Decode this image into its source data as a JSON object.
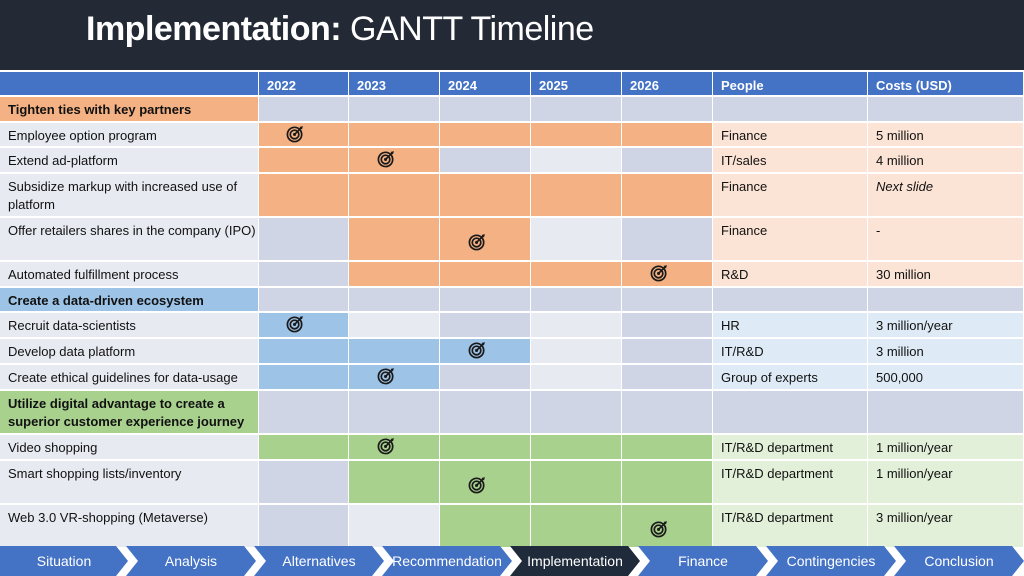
{
  "title": {
    "bold": "Implementation:",
    "rest": "GANTT Timeline"
  },
  "colors": {
    "title_bg": "#232a35",
    "header_bg": "#4472c4",
    "orange": "#f4b183",
    "orange_light": "#fbe4d5",
    "blue": "#9dc3e6",
    "blue_light": "#deebf7",
    "green": "#a9d18e",
    "green_light": "#e2f0d9",
    "gray": "#d0d5e6",
    "gray_light": "#e8eaf2",
    "nav": "#4472c4",
    "nav_active": "#1f2a3a"
  },
  "header": [
    "",
    "2022",
    "2023",
    "2024",
    "2025",
    "2026",
    "People",
    "Costs (USD)"
  ],
  "rows": [
    {
      "task": "Tighten ties with key partners",
      "kind": "section",
      "color": "orange",
      "fills": [
        0,
        0,
        0,
        0,
        0
      ],
      "target": -1,
      "people": "",
      "costs": ""
    },
    {
      "task": "Employee option program",
      "kind": "task",
      "color": "orange",
      "fills": [
        1,
        1,
        1,
        1,
        1
      ],
      "target": 0,
      "people": "Finance",
      "costs": "5 million"
    },
    {
      "task": "Extend ad-platform",
      "kind": "task",
      "color": "orange",
      "fills": [
        1,
        1,
        0,
        0,
        0
      ],
      "target": 1,
      "people": "IT/sales",
      "costs": "4 million"
    },
    {
      "task": "Subsidize markup with increased use of platform",
      "kind": "task",
      "color": "orange",
      "fills": [
        1,
        1,
        1,
        1,
        1
      ],
      "target": -1,
      "people": "Finance",
      "costs": "Next slide",
      "costs_italic": true
    },
    {
      "task": "Offer retailers shares in the company (IPO)",
      "kind": "task",
      "color": "orange",
      "fills": [
        0,
        1,
        1,
        0,
        0
      ],
      "target": 2,
      "people": "Finance",
      "costs": "-"
    },
    {
      "task": "Automated fulfillment process",
      "kind": "task",
      "color": "orange",
      "fills": [
        0,
        1,
        1,
        1,
        1
      ],
      "target": 4,
      "people": "R&D",
      "costs": "30 million"
    },
    {
      "task": "Create a data-driven ecosystem",
      "kind": "section",
      "color": "blue",
      "fills": [
        0,
        0,
        0,
        0,
        0
      ],
      "target": -1,
      "people": "",
      "costs": ""
    },
    {
      "task": "Recruit data-scientists",
      "kind": "task",
      "color": "blue",
      "fills": [
        1,
        0,
        0,
        0,
        0
      ],
      "target": 0,
      "people": "HR",
      "costs": "3 million/year"
    },
    {
      "task": "Develop data platform",
      "kind": "task",
      "color": "blue",
      "fills": [
        1,
        1,
        1,
        0,
        0
      ],
      "target": 2,
      "people": "IT/R&D",
      "costs": "3 million"
    },
    {
      "task": "Create ethical guidelines for data-usage",
      "kind": "task",
      "color": "blue",
      "fills": [
        1,
        1,
        0,
        0,
        0
      ],
      "target": 1,
      "people": "Group of experts",
      "costs": "500,000"
    },
    {
      "task": "Utilize digital advantage to create a superior customer experience journey",
      "kind": "section",
      "color": "green",
      "fills": [
        0,
        0,
        0,
        0,
        0
      ],
      "target": -1,
      "people": "",
      "costs": ""
    },
    {
      "task": "Video shopping",
      "kind": "task",
      "color": "green",
      "fills": [
        1,
        1,
        1,
        1,
        1
      ],
      "target": 1,
      "people": "IT/R&D department",
      "costs": "1 million/year"
    },
    {
      "task": "Smart shopping lists/inventory",
      "kind": "task",
      "color": "green",
      "fills": [
        0,
        1,
        1,
        1,
        1
      ],
      "target": 2,
      "people": "IT/R&D department",
      "costs": "1 million/year"
    },
    {
      "task": "Web 3.0 VR-shopping (Metaverse)",
      "kind": "task",
      "color": "green",
      "fills": [
        0,
        0,
        1,
        1,
        1
      ],
      "target": 4,
      "people": "IT/R&D department",
      "costs": "3 million/year"
    }
  ],
  "nav": [
    {
      "label": "Situation",
      "active": false
    },
    {
      "label": "Analysis",
      "active": false
    },
    {
      "label": "Alternatives",
      "active": false
    },
    {
      "label": "Recommendation",
      "active": false
    },
    {
      "label": "Implementation",
      "active": true
    },
    {
      "label": "Finance",
      "active": false
    },
    {
      "label": "Contingencies",
      "active": false
    },
    {
      "label": "Conclusion",
      "active": false
    }
  ]
}
